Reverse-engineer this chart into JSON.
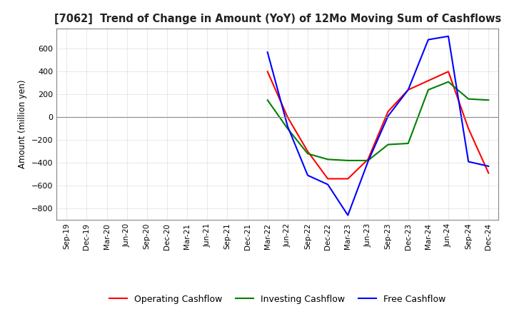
{
  "title": "[7062]  Trend of Change in Amount (YoY) of 12Mo Moving Sum of Cashflows",
  "ylabel": "Amount (million yen)",
  "x_labels": [
    "Sep-19",
    "Dec-19",
    "Mar-20",
    "Jun-20",
    "Sep-20",
    "Dec-20",
    "Mar-21",
    "Jun-21",
    "Sep-21",
    "Dec-21",
    "Mar-22",
    "Jun-22",
    "Sep-22",
    "Dec-22",
    "Mar-23",
    "Jun-23",
    "Sep-23",
    "Dec-23",
    "Mar-24",
    "Jun-24",
    "Sep-24",
    "Dec-24"
  ],
  "operating": [
    null,
    null,
    null,
    null,
    null,
    null,
    null,
    null,
    null,
    null,
    400,
    0,
    -300,
    -540,
    -540,
    -370,
    50,
    240,
    320,
    400,
    -100,
    -490
  ],
  "investing": [
    null,
    null,
    null,
    null,
    null,
    null,
    null,
    null,
    null,
    null,
    150,
    -100,
    -320,
    -370,
    -380,
    -380,
    -240,
    -230,
    240,
    310,
    160,
    150
  ],
  "free": [
    null,
    null,
    null,
    null,
    null,
    null,
    null,
    null,
    null,
    null,
    570,
    -80,
    -510,
    -590,
    -860,
    -390,
    10,
    240,
    680,
    710,
    -390,
    -430
  ],
  "ylim": [
    -900,
    780
  ],
  "yticks": [
    -800,
    -600,
    -400,
    -200,
    0,
    200,
    400,
    600
  ],
  "operating_color": "#ff0000",
  "investing_color": "#008000",
  "free_color": "#0000ff",
  "background_color": "#ffffff",
  "grid_color": "#aaaaaa"
}
